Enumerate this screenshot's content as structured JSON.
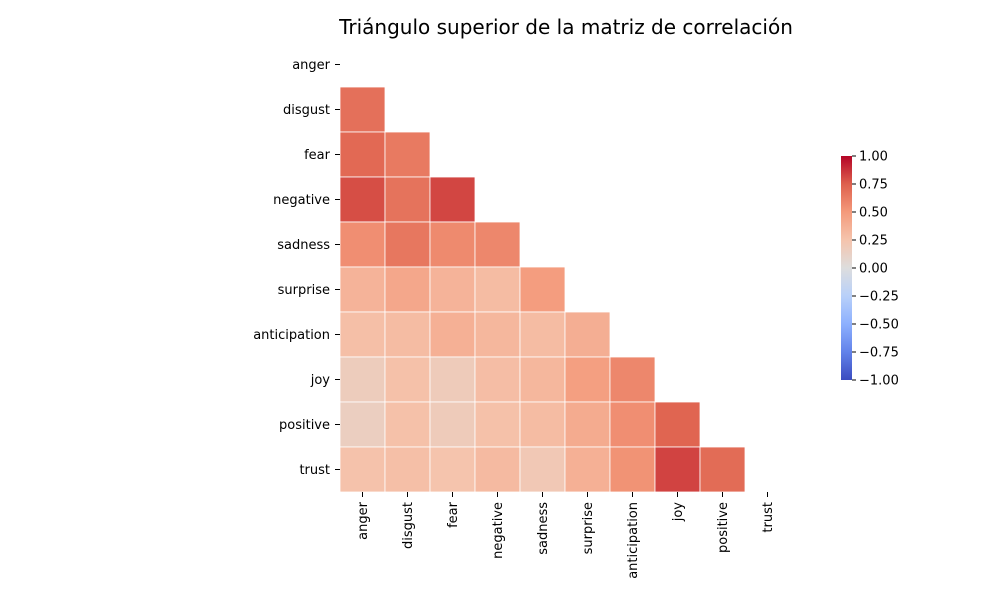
{
  "chart_data": {
    "type": "heatmap",
    "title": "Triángulo superior de la matriz de correlación",
    "row_labels": [
      "anger",
      "disgust",
      "fear",
      "negative",
      "sadness",
      "surprise",
      "anticipation",
      "joy",
      "positive",
      "trust"
    ],
    "col_labels": [
      "anger",
      "disgust",
      "fear",
      "negative",
      "sadness",
      "surprise",
      "anticipation",
      "joy",
      "positive",
      "trust"
    ],
    "matrix": [
      [
        null,
        null,
        null,
        null,
        null,
        null,
        null,
        null,
        null,
        null
      ],
      [
        0.68,
        null,
        null,
        null,
        null,
        null,
        null,
        null,
        null,
        null
      ],
      [
        0.71,
        0.64,
        null,
        null,
        null,
        null,
        null,
        null,
        null,
        null
      ],
      [
        0.8,
        0.67,
        0.82,
        null,
        null,
        null,
        null,
        null,
        null,
        null
      ],
      [
        0.55,
        0.65,
        0.57,
        0.58,
        null,
        null,
        null,
        null,
        null,
        null
      ],
      [
        0.35,
        0.42,
        0.35,
        0.3,
        0.48,
        null,
        null,
        null,
        null,
        null
      ],
      [
        0.28,
        0.3,
        0.37,
        0.33,
        0.3,
        0.38,
        null,
        null,
        null,
        null
      ],
      [
        0.17,
        0.27,
        0.18,
        0.29,
        0.33,
        0.47,
        0.58,
        null,
        null,
        null
      ],
      [
        0.15,
        0.27,
        0.18,
        0.27,
        0.3,
        0.4,
        0.55,
        0.73,
        null,
        null
      ],
      [
        0.26,
        0.28,
        0.25,
        0.31,
        0.21,
        0.37,
        0.53,
        0.83,
        0.7,
        null
      ]
    ],
    "colormap": "coolwarm",
    "vmin": -1.0,
    "vmax": 1.0,
    "colorbar_ticks": [
      "1.00",
      "0.75",
      "0.50",
      "0.25",
      "0.00",
      "−0.25",
      "−0.50",
      "−0.75",
      "−1.00"
    ],
    "colorbar_values": [
      1.0,
      0.75,
      0.5,
      0.25,
      0.0,
      -0.25,
      -0.5,
      -0.75,
      -1.0
    ]
  }
}
